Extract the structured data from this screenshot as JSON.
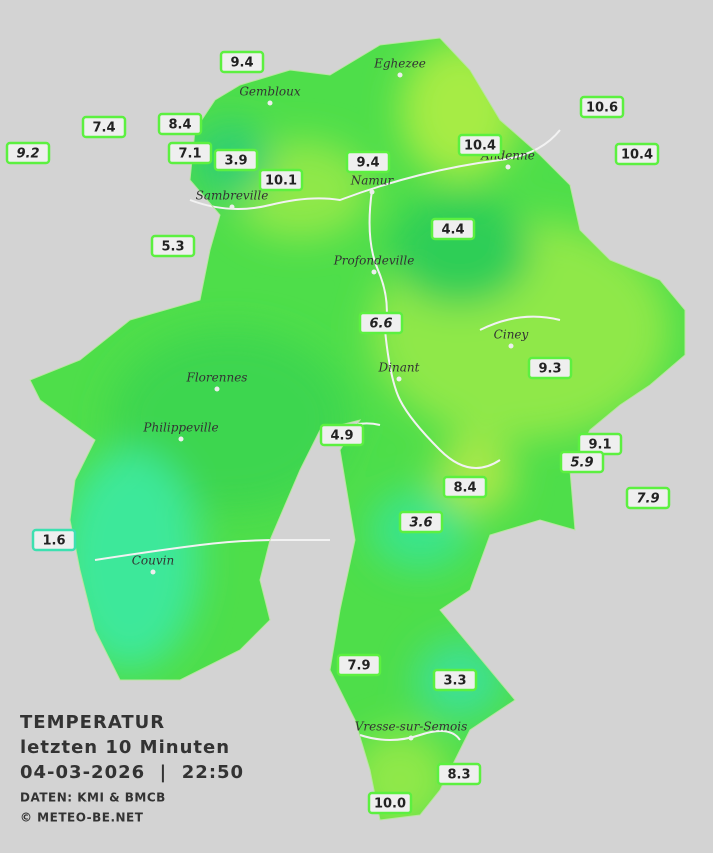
{
  "legend": {
    "title": "TEMPERATUR",
    "period": "letzten 10 Minuten",
    "timestamp": "04-03-2026  |  22:50",
    "source": "DATEN: KMI & BMCB",
    "copyright": "© METEO-BE.NET"
  },
  "towns": [
    "Eghezee",
    "Gembloux",
    "Andenne",
    "Namur",
    "Sambreville",
    "Profondeville",
    "Ciney",
    "Dinant",
    "Florennes",
    "Philippeville",
    "Couvin",
    "Vresse-sur-Semois"
  ],
  "stations": [
    "9.4",
    "7.4",
    "8.4",
    "9.2",
    "7.1",
    "3.9",
    "10.1",
    "9.4",
    "10.4",
    "10.6",
    "10.4",
    "5.3",
    "4.4",
    "6.6",
    "9.3",
    "4.9",
    "9.1",
    "5.9",
    "7.9",
    "8.4",
    "3.6",
    "1.6",
    "7.9",
    "3.3",
    "8.3",
    "10.0"
  ]
}
